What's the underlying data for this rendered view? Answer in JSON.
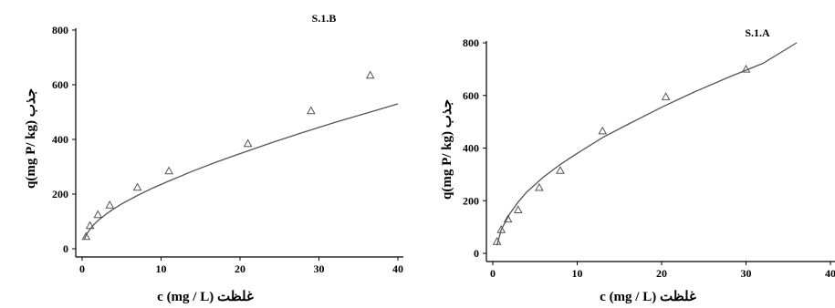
{
  "chart_data": [
    {
      "type": "scatter",
      "title": "S.1.B",
      "xlabel": "c (mg / L) غلظت",
      "ylabel": "q(mg P/ kg) جذب",
      "xlim": [
        0,
        40
      ],
      "ylim": [
        0,
        800
      ],
      "xticks": [
        0,
        10,
        20,
        30,
        40
      ],
      "yticks": [
        0,
        200,
        400,
        600,
        800
      ],
      "grid": false,
      "marker": "triangle-open",
      "series": [
        {
          "x": [
            0.5,
            1.0,
            2.0,
            3.5,
            7.0,
            11.0,
            21.0,
            29.0,
            36.5
          ],
          "y": [
            45,
            85,
            125,
            160,
            225,
            285,
            385,
            505,
            635
          ]
        }
      ],
      "fit_line": {
        "x": [
          0.3,
          0.6,
          1,
          1.5,
          2,
          3,
          4,
          5,
          7,
          9,
          11,
          14,
          17,
          20,
          24,
          28,
          32,
          36,
          40
        ],
        "y": [
          36,
          55,
          72,
          89,
          103,
          126,
          146,
          164,
          195,
          223,
          248,
          284,
          317,
          348,
          388,
          426,
          462,
          496,
          530
        ]
      }
    },
    {
      "type": "scatter",
      "title": "S.1.A",
      "xlabel": "c (mg / L) غلظت",
      "ylabel": "q(mg P/ kg) جذب",
      "xlim": [
        0,
        40
      ],
      "ylim": [
        0,
        800
      ],
      "xticks": [
        0,
        10,
        20,
        30,
        40
      ],
      "yticks": [
        0,
        200,
        400,
        600,
        800
      ],
      "grid": false,
      "marker": "triangle-open",
      "series": [
        {
          "x": [
            0.5,
            1.0,
            1.8,
            3.0,
            5.5,
            8.0,
            13.0,
            20.5,
            30.0
          ],
          "y": [
            45,
            90,
            130,
            165,
            250,
            315,
            465,
            595,
            700
          ]
        }
      ],
      "fit_line": {
        "x": [
          0.5,
          1,
          2,
          3,
          4,
          6,
          8,
          10,
          13,
          16,
          20,
          24,
          28,
          32,
          36
        ],
        "y": [
          30,
          90,
          150,
          195,
          232,
          290,
          338,
          380,
          440,
          490,
          555,
          615,
          670,
          722,
          800
        ]
      }
    }
  ]
}
